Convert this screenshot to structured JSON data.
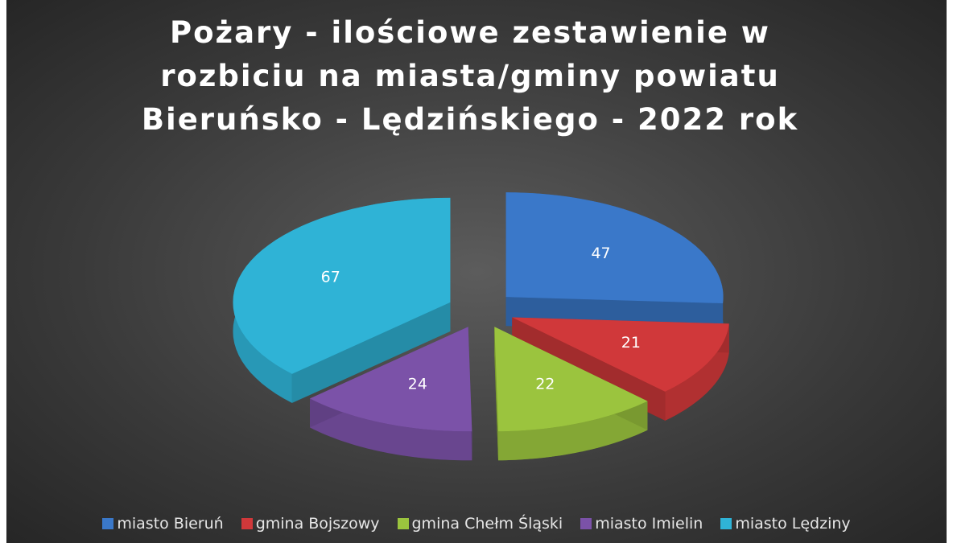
{
  "chart_data": {
    "type": "pie",
    "title": "Pożary - ilościowe zestawienie w rozbiciu na miasta/gminy powiatu Bieruńsko - Lędzińskiego - 2022 rok",
    "categories": [
      "miasto Bieruń",
      "gmina Bojszowy",
      "gmina Chełm Śląski",
      "miasto Imielin",
      "miasto Lędziny"
    ],
    "values": [
      47,
      21,
      22,
      24,
      67
    ],
    "colors": [
      "#3a78c9",
      "#d0383a",
      "#9bc43e",
      "#7b52a8",
      "#2fb3d6"
    ],
    "legend": "bottom"
  }
}
